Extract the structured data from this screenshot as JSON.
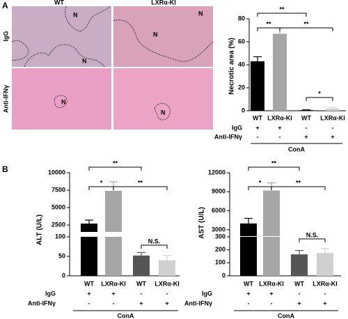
{
  "panels": [
    "A",
    "B"
  ],
  "images": {
    "columns": [
      "WT",
      "LXRα-KI"
    ],
    "rows": [
      "IgG",
      "Anti-IFNγ"
    ],
    "marks": [
      "N",
      "N",
      "N",
      "N",
      "N",
      "N"
    ]
  },
  "chart_data": [
    {
      "type": "bar",
      "ylabel": "Necrotic area (%)",
      "categories": [
        "WT",
        "LXRα-KI",
        "WT",
        "LXRα-KI"
      ],
      "values": [
        43,
        67,
        0.5,
        2
      ],
      "errors": [
        4,
        5,
        0.3,
        1
      ],
      "colors": [
        "#000000",
        "#a6a6a6",
        "#000000",
        "#d0d0d0"
      ],
      "ylim": [
        0,
        80
      ],
      "yticks": [
        0,
        20,
        40,
        60,
        80
      ],
      "conditions": [
        {
          "name": "IgG",
          "signs": [
            "+",
            "+",
            "-",
            "-"
          ]
        },
        {
          "name": "Anti-IFNγ",
          "signs": [
            "-",
            "-",
            "+",
            "+"
          ]
        }
      ],
      "group": "ConA",
      "brackets": [
        {
          "label": "**",
          "between": [
            0,
            2
          ]
        },
        {
          "label": "**",
          "between": [
            0,
            1
          ]
        },
        {
          "label": "**",
          "between": [
            1,
            3
          ]
        },
        {
          "label": "*",
          "between": [
            2,
            3
          ]
        }
      ]
    },
    {
      "type": "bar",
      "ylabel": "ALT (U/L)",
      "categories": [
        "WT",
        "LXRα-KI",
        "WT",
        "LXRα-KI"
      ],
      "values": [
        2700,
        7400,
        52,
        40
      ],
      "errors": [
        500,
        1300,
        8,
        12
      ],
      "colors": [
        "#000000",
        "#a6a6a6",
        "#555555",
        "#d0d0d0"
      ],
      "ylim": [
        0,
        100
      ],
      "yticks": [
        0,
        50,
        100
      ],
      "y_break": {
        "ylim": [
          1500,
          10000
        ],
        "yticks": [
          2500,
          5000,
          7500,
          10000
        ]
      },
      "conditions": [
        {
          "name": "IgG",
          "signs": [
            "+",
            "+",
            "-",
            "-"
          ]
        },
        {
          "name": "Anti-IFNγ",
          "signs": [
            "-",
            "-",
            "+",
            "+"
          ]
        }
      ],
      "group": "ConA",
      "brackets": [
        {
          "label": "**",
          "between": [
            0,
            2
          ]
        },
        {
          "label": "*",
          "between": [
            0,
            1
          ]
        },
        {
          "label": "**",
          "between": [
            1,
            3
          ]
        },
        {
          "label": "N.S.",
          "between": [
            2,
            3
          ]
        }
      ]
    },
    {
      "type": "bar",
      "ylabel": "AST (U/L)",
      "categories": [
        "WT",
        "LXRα-KI",
        "WT",
        "LXRα-KI"
      ],
      "values": [
        4000,
        9200,
        165,
        175
      ],
      "errors": [
        800,
        1200,
        30,
        35
      ],
      "colors": [
        "#000000",
        "#a6a6a6",
        "#555555",
        "#d0d0d0"
      ],
      "ylim": [
        0,
        300
      ],
      "yticks": [
        0,
        100,
        200,
        300
      ],
      "y_break": {
        "ylim": [
          2000,
          12000
        ],
        "yticks": [
          3000,
          6000,
          9000,
          12000
        ]
      },
      "conditions": [
        {
          "name": "IgG",
          "signs": [
            "+",
            "+",
            "-",
            "-"
          ]
        },
        {
          "name": "Anti-IFNγ",
          "signs": [
            "-",
            "-",
            "+",
            "+"
          ]
        }
      ],
      "group": "ConA",
      "brackets": [
        {
          "label": "**",
          "between": [
            0,
            2
          ]
        },
        {
          "label": "*",
          "between": [
            0,
            1
          ]
        },
        {
          "label": "**",
          "between": [
            1,
            3
          ]
        },
        {
          "label": "N.S.",
          "between": [
            2,
            3
          ]
        }
      ]
    }
  ]
}
